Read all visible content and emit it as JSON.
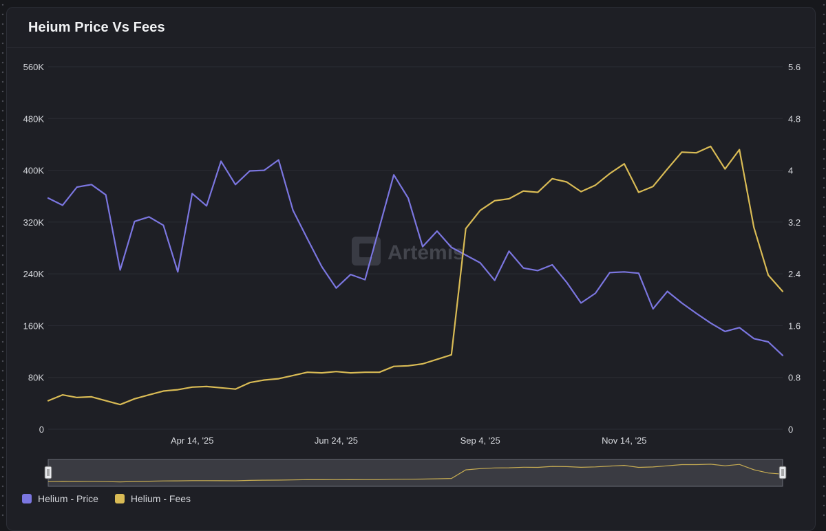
{
  "title": "Heium Price Vs Fees",
  "watermark": "Artemis",
  "colors": {
    "price": "#7b76e0",
    "fees": "#d9bb55",
    "grid": "#2b2d35",
    "axis_text": "#d6d8dd"
  },
  "chart_data": {
    "type": "line",
    "title": "Heium Price Vs Fees",
    "x_labels": [
      "Apr 14, '25",
      "Jun 24, '25",
      "Sep 4, '25",
      "Nov 14, '25"
    ],
    "x_label_indices": [
      10,
      20,
      30,
      40
    ],
    "y_left": {
      "min": 0,
      "max": 560000,
      "ticks": [
        "0",
        "80K",
        "160K",
        "240K",
        "320K",
        "400K",
        "480K",
        "560K"
      ]
    },
    "y_right": {
      "min": 0,
      "max": 5.6,
      "ticks": [
        "0",
        "0.8",
        "1.6",
        "2.4",
        "3.2",
        "4",
        "4.8",
        "5.6"
      ]
    },
    "series": [
      {
        "name": "Helium - Price",
        "axis": "left",
        "values": [
          357000,
          346000,
          374000,
          378000,
          362000,
          246000,
          321000,
          328000,
          315000,
          243000,
          364000,
          345000,
          414000,
          378000,
          399000,
          400000,
          416000,
          338000,
          294000,
          251000,
          218000,
          239000,
          231000,
          312000,
          393000,
          357000,
          282000,
          306000,
          281000,
          269000,
          257000,
          230000,
          275000,
          249000,
          245000,
          254000,
          227000,
          195000,
          210000,
          242000,
          243000,
          241000,
          186000,
          213000,
          195000,
          179000,
          164000,
          151000,
          157000,
          140000,
          135000,
          114000
        ]
      },
      {
        "name": "Helium - Fees",
        "axis": "right",
        "values": [
          0.44,
          0.53,
          0.49,
          0.5,
          0.44,
          0.38,
          0.47,
          0.53,
          0.59,
          0.61,
          0.65,
          0.66,
          0.64,
          0.62,
          0.72,
          0.76,
          0.78,
          0.83,
          0.88,
          0.87,
          0.89,
          0.87,
          0.88,
          0.88,
          0.97,
          0.98,
          1.01,
          1.08,
          1.15,
          3.1,
          3.38,
          3.53,
          3.56,
          3.68,
          3.66,
          3.87,
          3.82,
          3.67,
          3.77,
          3.95,
          4.1,
          3.66,
          3.75,
          4.02,
          4.28,
          4.27,
          4.37,
          4.02,
          4.32,
          3.12,
          2.38,
          2.13
        ]
      }
    ]
  },
  "legend": {
    "price_label": "Helium - Price",
    "fees_label": "Helium - Fees"
  }
}
